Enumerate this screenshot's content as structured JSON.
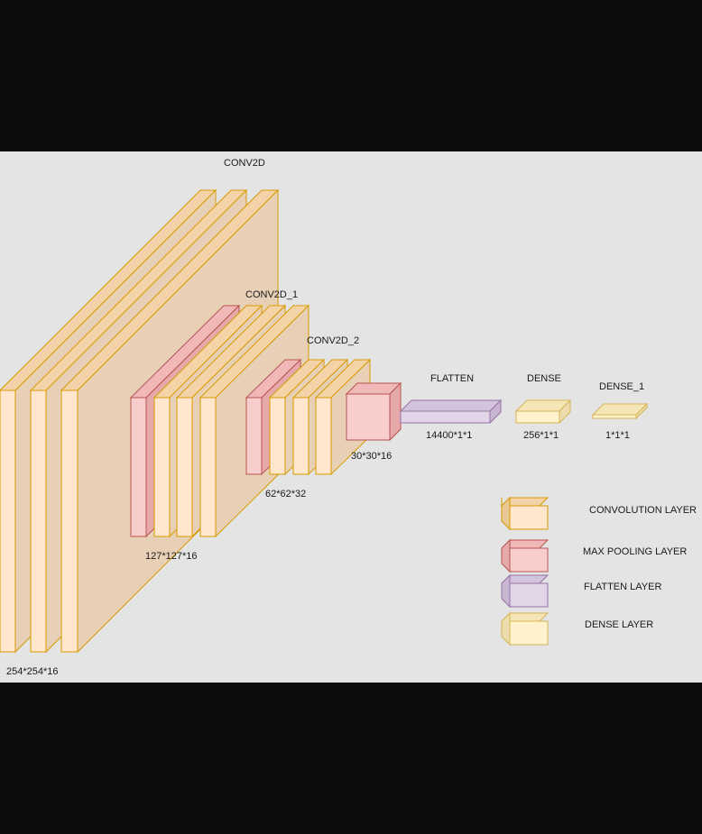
{
  "labels": {
    "conv2d": "CONV2D",
    "conv2d_1": "CONV2D_1",
    "conv2d_2": "CONV2D_2",
    "flatten": "FLATTEN",
    "dense": "DENSE",
    "dense_1": "DENSE_1"
  },
  "dims": {
    "d1": "254*254*16",
    "d2": "127*127*16",
    "d3": "62*62*32",
    "d4": "30*30*16",
    "d5": "14400*1*1",
    "d6": "256*1*1",
    "d7": "1*1*1"
  },
  "legend": [
    {
      "label": "CONVOLUTION LAYER",
      "color": "#ffe6cc",
      "top": "#f5d3a8",
      "side": "#e8c896",
      "stroke": "#d79b00"
    },
    {
      "label": "MAX POOLING LAYER",
      "color": "#f8cecc",
      "top": "#f0b8b8",
      "side": "#e4a9a8",
      "stroke": "#b85450"
    },
    {
      "label": "FLATTEN LAYER",
      "color": "#e1d5e7",
      "top": "#d2c4dc",
      "side": "#c8b6d2",
      "stroke": "#9673a6"
    },
    {
      "label": "DENSE LAYER",
      "color": "#fff2cc",
      "top": "#f5e6b8",
      "side": "#ecdcae",
      "stroke": "#d6b656"
    }
  ]
}
